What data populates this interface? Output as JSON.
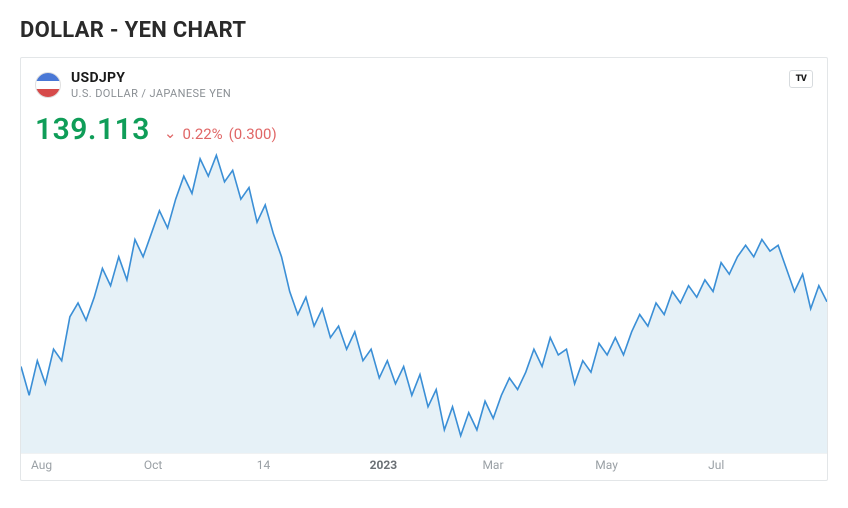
{
  "title": "DOLLAR - YEN CHART",
  "header": {
    "ticker": "USDJPY",
    "subtitle": "U.S. DOLLAR / JAPANESE YEN",
    "brand_badge": "TV"
  },
  "quote": {
    "price": "139.113",
    "price_color": "#0f9d58",
    "change_direction": "down",
    "change_pct": "0.22%",
    "change_abs": "(0.300)",
    "change_color": "#e06666"
  },
  "chart": {
    "type": "area",
    "line_color": "#3b8fd6",
    "fill_color": "#d9e9f3",
    "fill_opacity": 0.65,
    "background_color": "#ffffff",
    "line_width": 1.6,
    "ylim": [
      126,
      152
    ],
    "x_labels": [
      "Aug",
      "Oct",
      "14",
      "2023",
      "Mar",
      "May",
      "Jul"
    ],
    "x_label_color": "#9aa0a5",
    "x_label_fontsize": 12,
    "series": [
      133.5,
      131.0,
      134.0,
      132.0,
      135.0,
      134.0,
      137.8,
      139.0,
      137.5,
      139.5,
      142.0,
      140.5,
      143.0,
      141.0,
      144.5,
      143.0,
      145.0,
      147.0,
      145.5,
      148.0,
      150.0,
      148.5,
      151.5,
      150.0,
      151.8,
      149.5,
      150.5,
      148.0,
      149.0,
      146.0,
      147.5,
      145.0,
      143.0,
      140.0,
      138.0,
      139.5,
      137.0,
      138.5,
      136.0,
      137.0,
      135.0,
      136.5,
      134.0,
      135.0,
      132.5,
      134.0,
      132.0,
      133.5,
      131.0,
      132.8,
      130.0,
      131.5,
      128.0,
      130.0,
      127.5,
      129.5,
      128.0,
      130.5,
      129.0,
      131.0,
      132.5,
      131.5,
      133.0,
      135.0,
      133.5,
      136.0,
      134.5,
      135.0,
      132.0,
      134.0,
      133.0,
      135.5,
      134.5,
      136.0,
      134.5,
      136.5,
      138.0,
      137.0,
      139.0,
      138.0,
      140.0,
      139.0,
      140.5,
      139.5,
      141.0,
      140.0,
      142.5,
      141.5,
      143.0,
      144.0,
      143.0,
      144.5,
      143.5,
      144.0,
      142.0,
      140.0,
      141.5,
      138.5,
      140.5,
      139.1
    ]
  }
}
